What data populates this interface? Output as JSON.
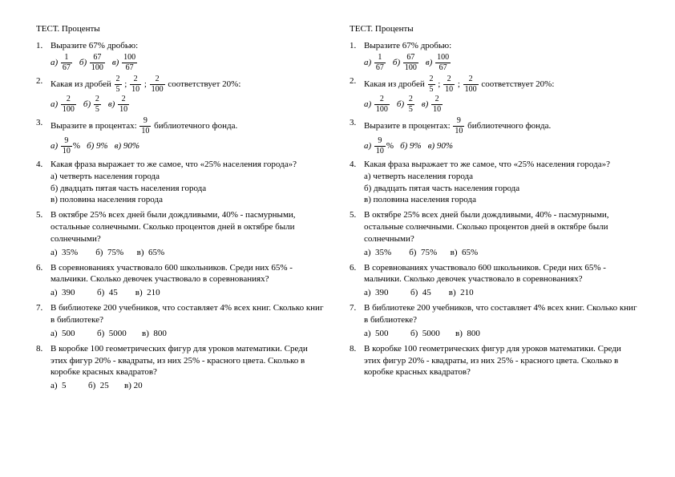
{
  "title": "ТЕСТ. Проценты",
  "questions": [
    {
      "num": "1.",
      "text": "Выразите 67% дробью:",
      "type": "frac-options",
      "options": [
        {
          "label": "а)",
          "n": "1",
          "d": "67"
        },
        {
          "label": "б)",
          "n": "67",
          "d": "100"
        },
        {
          "label": "в)",
          "n": "100",
          "d": "67"
        }
      ]
    },
    {
      "num": "2.",
      "text_pre": "Какая из дробей ",
      "fracs": [
        {
          "n": "2",
          "d": "5"
        },
        {
          "n": "2",
          "d": "10"
        },
        {
          "n": "2",
          "d": "100"
        }
      ],
      "text_post": " соответствует 20%:",
      "type": "frac-inline-options",
      "options": [
        {
          "label": "а)",
          "n": "2",
          "d": "100"
        },
        {
          "label": "б)",
          "n": "2",
          "d": "5"
        },
        {
          "label": "в)",
          "n": "2",
          "d": "10"
        }
      ]
    },
    {
      "num": "3.",
      "text_pre": "Выразите в процентах: ",
      "frac": {
        "n": "9",
        "d": "10"
      },
      "text_post": " библиотечного фонда.",
      "type": "mixed-options",
      "options_mixed": {
        "a_label": "а)",
        "a_frac": {
          "n": "9",
          "d": "10"
        },
        "a_suffix": "%",
        "b": "б) 9%",
        "c": "в) 90%"
      }
    },
    {
      "num": "4.",
      "text": "Какая фраза выражает то же самое, что «25% населения города»?",
      "type": "text-options",
      "text_options": [
        "а)  четверть населения города",
        "б)  двадцать пятая часть населения города",
        "в)  половина населения города"
      ]
    },
    {
      "num": "5.",
      "text": "В октябре 25% всех дней были дождливыми, 40% - пасмурными, остальные солнечными. Сколько процентов дней в октябре были солнечными?",
      "type": "inline-options",
      "inline_options": "а)  35%        б)  75%      в)  65%"
    },
    {
      "num": "6.",
      "text": "В соревнованиях участвовало 600 школьников. Среди них 65% - мальчики. Сколько девочек участвовало в соревнованиях?",
      "type": "inline-options",
      "inline_options": "а)  390          б)  45        в)  210"
    },
    {
      "num": "7.",
      "text": "В библиотеке 200 учебников, что составляет 4% всех книг. Сколько книг в библиотеке?",
      "type": "inline-options",
      "inline_options": "а)  500          б)  5000       в)  800"
    },
    {
      "num": "8.",
      "text": "В коробке 100 геометрических фигур для уроков математики. Среди этих фигур 20% - квадраты, из них 25% - красного цвета. Сколько в коробке красных квадратов?",
      "type": "inline-options",
      "inline_options": "а)  5          б)  25       в) 20"
    }
  ],
  "right_column_omit_last_answers": true
}
